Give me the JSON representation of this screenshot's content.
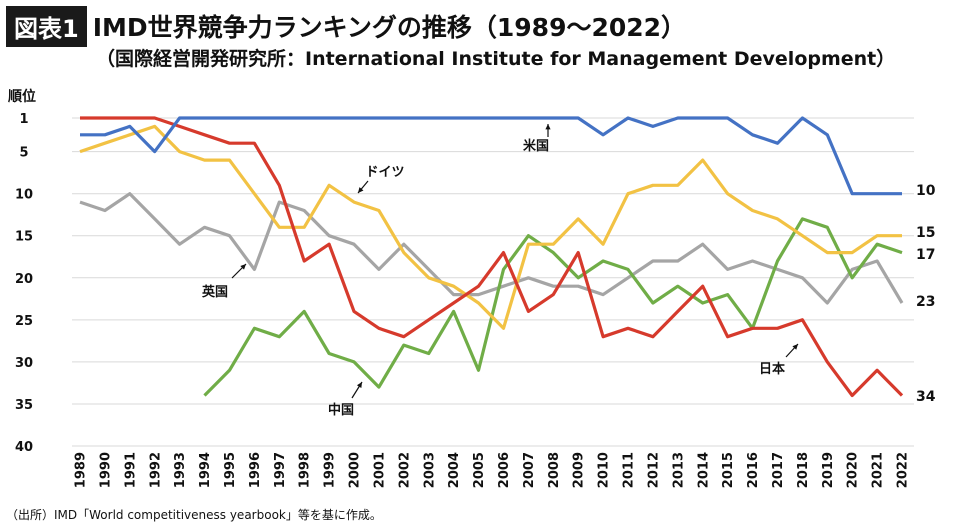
{
  "header": {
    "badge": "図表1",
    "title": "IMD世界競争力ランキングの推移（1989〜2022）",
    "subtitle": "（国際経営開発研究所：International Institute for Management Development）"
  },
  "footer": {
    "source": "（出所）IMD「World competitiveness yearbook」等を基に作成。"
  },
  "chart_data": {
    "type": "line",
    "ylabel": "順位",
    "y_inverted": true,
    "ylim": [
      1,
      40
    ],
    "yticks": [
      1,
      5,
      10,
      15,
      20,
      25,
      30,
      35,
      40
    ],
    "x": [
      1989,
      1990,
      1991,
      1992,
      1993,
      1994,
      1995,
      1996,
      1997,
      1998,
      1999,
      2000,
      2001,
      2002,
      2003,
      2004,
      2005,
      2006,
      2007,
      2008,
      2009,
      2010,
      2011,
      2012,
      2013,
      2014,
      2015,
      2016,
      2017,
      2018,
      2019,
      2020,
      2021,
      2022
    ],
    "grid": "horizontal",
    "series": [
      {
        "name": "米国",
        "color": "#4472c4",
        "values": [
          3,
          3,
          2,
          5,
          1,
          1,
          1,
          1,
          1,
          1,
          1,
          1,
          1,
          1,
          1,
          1,
          1,
          1,
          1,
          1,
          1,
          3,
          1,
          2,
          1,
          1,
          1,
          3,
          4,
          1,
          3,
          10,
          10,
          10
        ]
      },
      {
        "name": "ドイツ",
        "color": "#f2c244",
        "values": [
          5,
          4,
          3,
          2,
          5,
          6,
          6,
          10,
          14,
          14,
          9,
          11,
          12,
          17,
          20,
          21,
          23,
          26,
          16,
          16,
          13,
          16,
          10,
          9,
          9,
          6,
          10,
          12,
          13,
          15,
          17,
          17,
          15,
          15
        ]
      },
      {
        "name": "英国",
        "color": "#a5a5a5",
        "values": [
          11,
          12,
          10,
          13,
          16,
          14,
          15,
          19,
          11,
          12,
          15,
          16,
          19,
          16,
          19,
          22,
          22,
          21,
          20,
          21,
          21,
          22,
          20,
          18,
          18,
          16,
          19,
          18,
          19,
          20,
          23,
          19,
          18,
          23
        ]
      },
      {
        "name": "日本",
        "color": "#d63a2c",
        "values": [
          1,
          1,
          1,
          1,
          2,
          3,
          4,
          4,
          9,
          18,
          16,
          24,
          26,
          27,
          25,
          23,
          21,
          17,
          24,
          22,
          17,
          27,
          26,
          27,
          24,
          21,
          27,
          26,
          26,
          25,
          30,
          34,
          31,
          34
        ]
      },
      {
        "name": "中国",
        "color": "#70ad47",
        "values": [
          null,
          null,
          null,
          null,
          null,
          34,
          31,
          26,
          27,
          24,
          29,
          30,
          33,
          28,
          29,
          24,
          31,
          19,
          15,
          17,
          20,
          18,
          19,
          23,
          21,
          23,
          22,
          26,
          18,
          13,
          14,
          20,
          16,
          17
        ]
      }
    ],
    "end_labels": [
      "10",
      "15",
      "17",
      "23",
      "34"
    ]
  }
}
